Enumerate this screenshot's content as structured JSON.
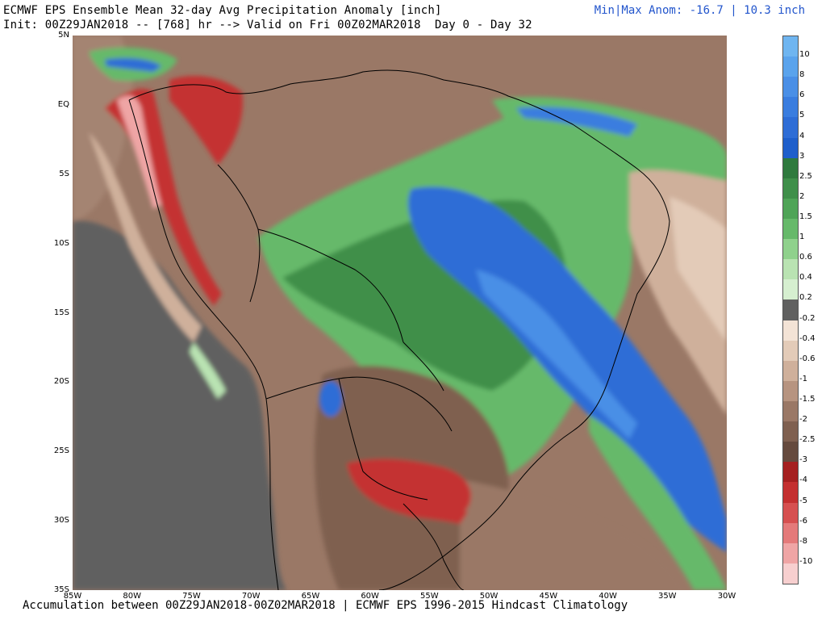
{
  "header": {
    "title1": "ECMWF EPS Ensemble Mean 32-day Avg Precipitation Anomaly [inch]",
    "title2": "Init: 00Z29JAN2018 -- [768] hr --> Valid on Fri 00Z02MAR2018  Day 0 - Day 32",
    "minmax": "Min|Max Anom: -16.7 | 10.3 inch"
  },
  "footer": {
    "text": "Accumulation between 00Z29JAN2018-00Z02MAR2018 | ECMWF EPS 1996-2015 Hindcast Climatology"
  },
  "map": {
    "lat_labels": [
      "5N",
      "EQ",
      "5S",
      "10S",
      "15S",
      "20S",
      "25S",
      "30S",
      "35S"
    ],
    "lon_labels": [
      "85W",
      "80W",
      "75W",
      "70W",
      "65W",
      "60W",
      "55W",
      "50W",
      "45W",
      "40W",
      "35W",
      "30W"
    ],
    "extent": {
      "lon_min": -85,
      "lon_max": -30,
      "lat_min": -35,
      "lat_max": 5
    }
  },
  "colorbar": {
    "labels": [
      "10",
      "8",
      "6",
      "5",
      "4",
      "3",
      "2.5",
      "2",
      "1.5",
      "1",
      "0.6",
      "0.4",
      "0.2",
      "-0.2",
      "-0.4",
      "-0.6",
      "-1",
      "-1.5",
      "-2",
      "-2.5",
      "-3",
      "-4",
      "-5",
      "-6",
      "-8",
      "-10"
    ],
    "colors": [
      "#6fb5f0",
      "#5aa3ec",
      "#4a8fe6",
      "#3a7ddf",
      "#2e6dd6",
      "#1f5fcb",
      "#2f7a3e",
      "#3f8f4a",
      "#4fa457",
      "#66b96a",
      "#8fd18c",
      "#b9e3b2",
      "#d6efd0",
      "#606060",
      "#f3e3d6",
      "#e3cbb8",
      "#cfb09b",
      "#b79480",
      "#9a7866",
      "#7f6050",
      "#654a3e",
      "#a52020",
      "#c43030",
      "#d65050",
      "#e47a7a",
      "#efa5a5",
      "#f7cfcf"
    ]
  }
}
